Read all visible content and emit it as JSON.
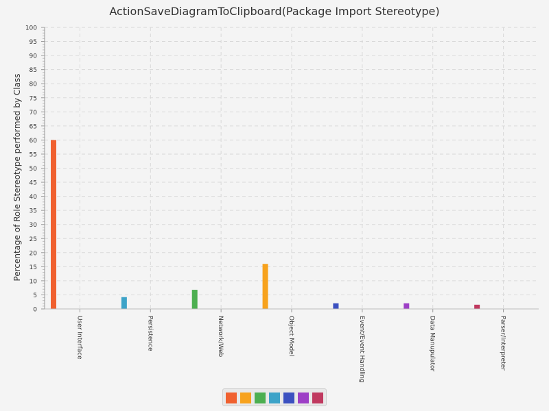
{
  "chart_data": {
    "type": "bar",
    "title": "ActionSaveDiagramToClipboard(Package Import Stereotype)",
    "ylabel": "Percentage of Role Stereotype performed by Class",
    "xlabel": "",
    "ylim": [
      0,
      100
    ],
    "ytick_step": 5,
    "grid": true,
    "legend": "bottom",
    "categories": [
      "User Interface",
      "Persistence",
      "Network/Web",
      "Object Model",
      "Event/Event Handling",
      "Data Manupulator",
      "Parser/Interpreter"
    ],
    "values": [
      60,
      4.2,
      6.8,
      16,
      2,
      2,
      1.5
    ],
    "colors": [
      "#f0602f",
      "#3da3c8",
      "#4caf50",
      "#f7a21d",
      "#3b50c0",
      "#9d3fc6",
      "#c0395f"
    ],
    "legend_colors": [
      "#f0602f",
      "#f7a21d",
      "#4caf50",
      "#3da3c8",
      "#3b50c0",
      "#9d3fc6",
      "#c0395f"
    ]
  }
}
